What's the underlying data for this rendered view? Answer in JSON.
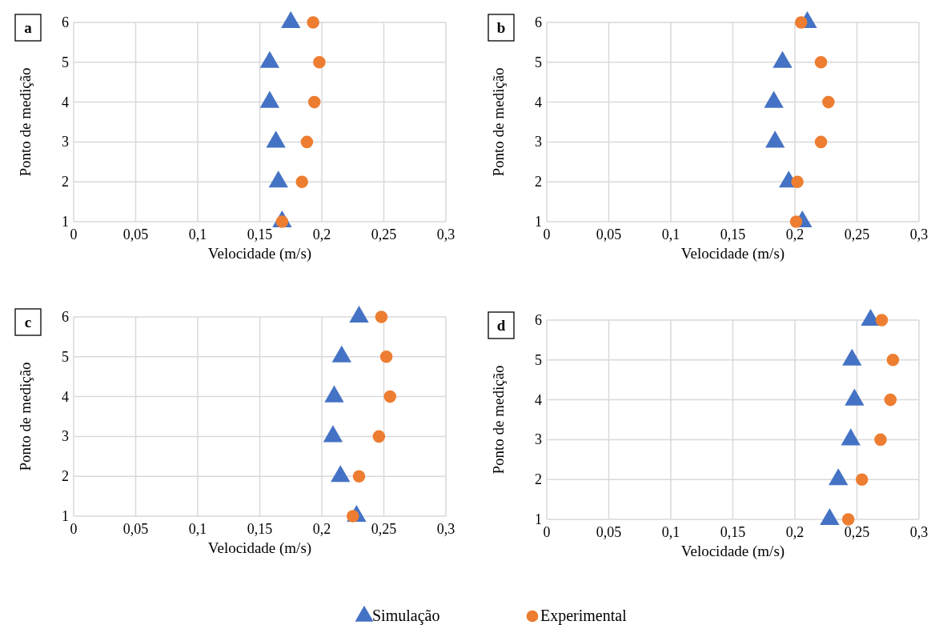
{
  "chart_data": [
    {
      "type": "scatter",
      "title": "a",
      "xlabel": "Velocidade (m/s)",
      "ylabel": "Ponto de medição",
      "xlim": [
        0,
        0.3
      ],
      "xticks": [
        {
          "value": 0,
          "label": "0"
        },
        {
          "value": 0.05,
          "label": "0,05"
        },
        {
          "value": 0.1,
          "label": "0,1"
        },
        {
          "value": 0.15,
          "label": "0,15"
        },
        {
          "value": 0.2,
          "label": "0,2"
        },
        {
          "value": 0.25,
          "label": "0,25"
        },
        {
          "value": 0.3,
          "label": "0,3"
        }
      ],
      "ylim": [
        1,
        6
      ],
      "yticks": [
        1,
        2,
        3,
        4,
        5,
        6
      ],
      "grid": true,
      "legend": false,
      "series": [
        {
          "color": "#4472c4",
          "marker": "triangle",
          "x": [
            0.168,
            0.165,
            0.163,
            0.158,
            0.158,
            0.175
          ],
          "values": [
            1,
            2,
            3,
            4,
            5,
            6
          ]
        },
        {
          "color": "#ed7d31",
          "marker": "circle",
          "x": [
            0.168,
            0.184,
            0.188,
            0.194,
            0.198,
            0.193
          ],
          "values": [
            1,
            2,
            3,
            4,
            5,
            6
          ]
        }
      ]
    },
    {
      "type": "scatter",
      "title": "b",
      "xlabel": "Velocidade (m/s)",
      "ylabel": "Ponto de medição",
      "xlim": [
        0,
        0.3
      ],
      "xticks": [
        {
          "value": 0,
          "label": "0"
        },
        {
          "value": 0.05,
          "label": "0,05"
        },
        {
          "value": 0.1,
          "label": "0,1"
        },
        {
          "value": 0.15,
          "label": "0,15"
        },
        {
          "value": 0.2,
          "label": "0,2"
        },
        {
          "value": 0.25,
          "label": "0,25"
        },
        {
          "value": 0.3,
          "label": "0,3"
        }
      ],
      "ylim": [
        1,
        6
      ],
      "yticks": [
        1,
        2,
        3,
        4,
        5,
        6
      ],
      "grid": true,
      "legend": false,
      "series": [
        {
          "color": "#4472c4",
          "marker": "triangle",
          "x": [
            0.206,
            0.195,
            0.184,
            0.183,
            0.19,
            0.21
          ],
          "values": [
            1,
            2,
            3,
            4,
            5,
            6
          ]
        },
        {
          "color": "#ed7d31",
          "marker": "circle",
          "x": [
            0.201,
            0.202,
            0.221,
            0.227,
            0.221,
            0.205
          ],
          "values": [
            1,
            2,
            3,
            4,
            5,
            6
          ]
        }
      ]
    },
    {
      "type": "scatter",
      "title": "c",
      "xlabel": "Velocidade (m/s)",
      "ylabel": "Ponto de medição",
      "xlim": [
        0,
        0.3
      ],
      "xticks": [
        {
          "value": 0,
          "label": "0"
        },
        {
          "value": 0.05,
          "label": "0,05"
        },
        {
          "value": 0.1,
          "label": "0,1"
        },
        {
          "value": 0.15,
          "label": "0,15"
        },
        {
          "value": 0.2,
          "label": "0,2"
        },
        {
          "value": 0.25,
          "label": "0,25"
        },
        {
          "value": 0.3,
          "label": "0,3"
        }
      ],
      "ylim": [
        1,
        6
      ],
      "yticks": [
        1,
        2,
        3,
        4,
        5,
        6
      ],
      "grid": true,
      "legend": false,
      "series": [
        {
          "color": "#4472c4",
          "marker": "triangle",
          "x": [
            0.228,
            0.215,
            0.209,
            0.21,
            0.216,
            0.23
          ],
          "values": [
            1,
            2,
            3,
            4,
            5,
            6
          ]
        },
        {
          "color": "#ed7d31",
          "marker": "circle",
          "x": [
            0.225,
            0.23,
            0.246,
            0.255,
            0.252,
            0.248
          ],
          "values": [
            1,
            2,
            3,
            4,
            5,
            6
          ]
        }
      ]
    },
    {
      "type": "scatter",
      "title": "d",
      "xlabel": "Velocidade (m/s)",
      "ylabel": "Ponto de medição",
      "xlim": [
        0,
        0.3
      ],
      "xticks": [
        {
          "value": 0,
          "label": "0"
        },
        {
          "value": 0.05,
          "label": "0,05"
        },
        {
          "value": 0.1,
          "label": "0,1"
        },
        {
          "value": 0.15,
          "label": "0,15"
        },
        {
          "value": 0.2,
          "label": "0,2"
        },
        {
          "value": 0.25,
          "label": "0,25"
        },
        {
          "value": 0.3,
          "label": "0,3"
        }
      ],
      "ylim": [
        1,
        6
      ],
      "yticks": [
        1,
        2,
        3,
        4,
        5,
        6
      ],
      "grid": true,
      "legend": "bottom",
      "series": [
        {
          "name": "Simulação",
          "color": "#4472c4",
          "marker": "triangle",
          "x": [
            0.228,
            0.235,
            0.245,
            0.248,
            0.246,
            0.261
          ],
          "values": [
            1,
            2,
            3,
            4,
            5,
            6
          ]
        },
        {
          "name": "Experimental",
          "color": "#ed7d31",
          "marker": "circle",
          "x": [
            0.243,
            0.254,
            0.269,
            0.277,
            0.279,
            0.27
          ],
          "values": [
            1,
            2,
            3,
            4,
            5,
            6
          ]
        }
      ]
    }
  ]
}
